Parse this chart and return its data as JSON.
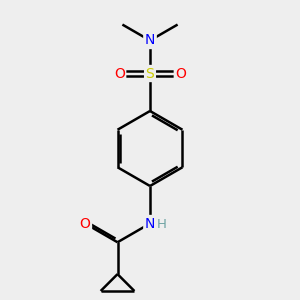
{
  "background_color": "#eeeeee",
  "atom_colors": {
    "C": "#000000",
    "H": "#6fa3a3",
    "N": "#0000ff",
    "O": "#ff0000",
    "S": "#cccc00"
  },
  "bond_color": "#000000",
  "bond_lw": 1.8,
  "figsize": [
    3.0,
    3.0
  ],
  "dpi": 100,
  "xlim": [
    0,
    10
  ],
  "ylim": [
    0,
    10
  ]
}
